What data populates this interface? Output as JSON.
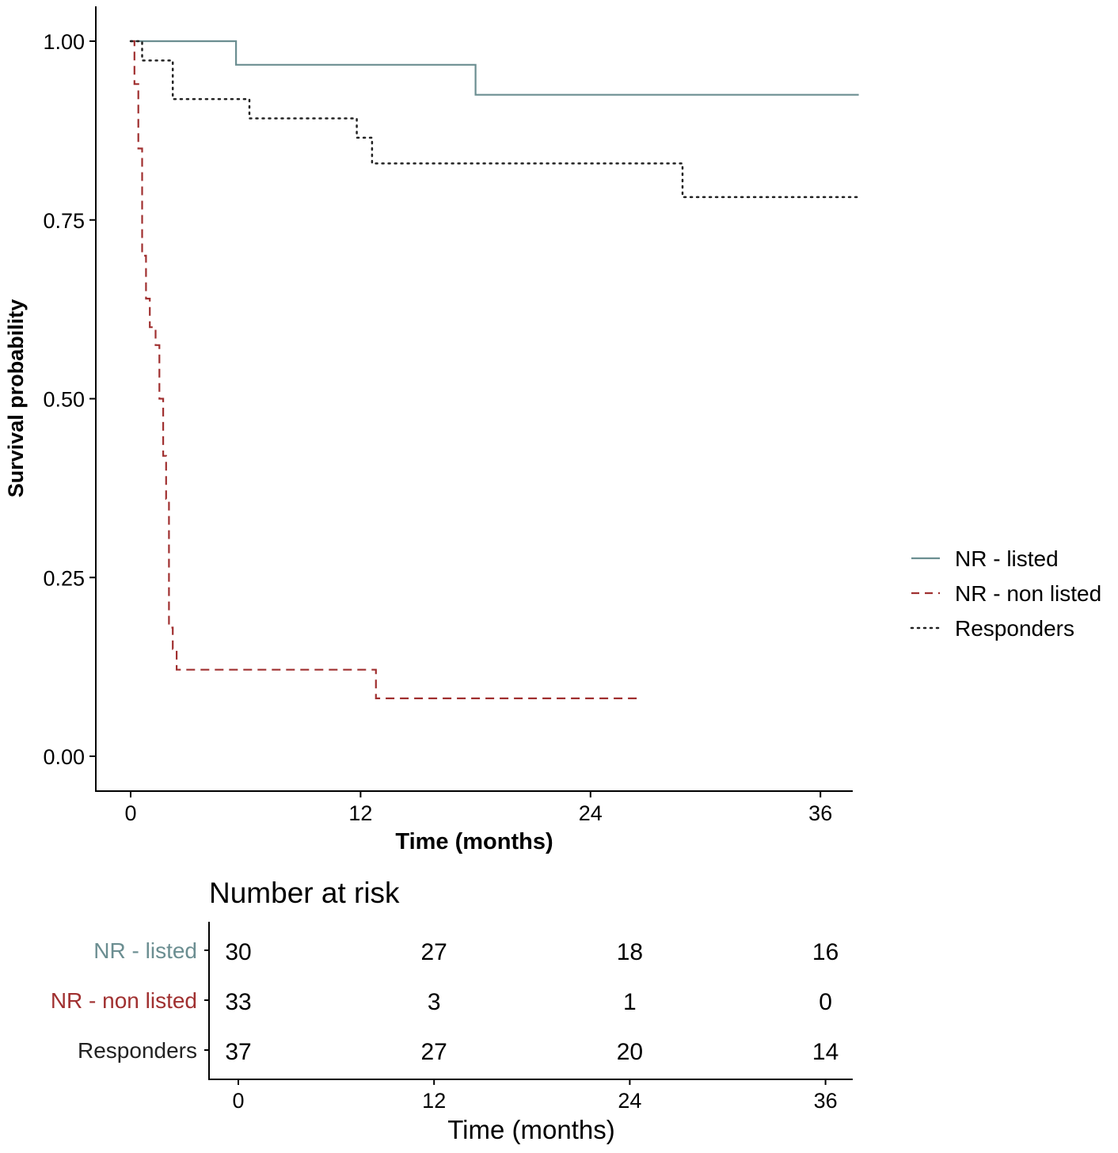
{
  "chart_data": [
    {
      "type": "line",
      "subtype": "kaplan-meier survival curve",
      "xlabel": "Time (months)",
      "ylabel": "Survival probability",
      "xlim": [
        -1.5,
        38
      ],
      "ylim": [
        -0.05,
        1.05
      ],
      "x_ticks": [
        "0",
        "12",
        "24",
        "36"
      ],
      "y_ticks": [
        "0.00",
        "0.25",
        "0.50",
        "0.75",
        "1.00"
      ],
      "grid": false,
      "legend_position": "right",
      "series": [
        {
          "name": "NR - listed",
          "color": "#6b8e91",
          "line_style": "solid",
          "points": [
            [
              0,
              1.0
            ],
            [
              5.5,
              1.0
            ],
            [
              5.5,
              0.967
            ],
            [
              18,
              0.967
            ],
            [
              18,
              0.925
            ],
            [
              38,
              0.925
            ]
          ]
        },
        {
          "name": "NR - non listed",
          "color": "#a03030",
          "line_style": "dashed",
          "points": [
            [
              0,
              1.0
            ],
            [
              0.2,
              1.0
            ],
            [
              0.2,
              0.94
            ],
            [
              0.4,
              0.94
            ],
            [
              0.4,
              0.85
            ],
            [
              0.6,
              0.85
            ],
            [
              0.6,
              0.7
            ],
            [
              0.8,
              0.7
            ],
            [
              0.8,
              0.64
            ],
            [
              1.0,
              0.64
            ],
            [
              1.0,
              0.6
            ],
            [
              1.3,
              0.6
            ],
            [
              1.3,
              0.575
            ],
            [
              1.5,
              0.575
            ],
            [
              1.5,
              0.5
            ],
            [
              1.7,
              0.5
            ],
            [
              1.7,
              0.42
            ],
            [
              1.85,
              0.42
            ],
            [
              1.85,
              0.36
            ],
            [
              2.0,
              0.36
            ],
            [
              2.0,
              0.18
            ],
            [
              2.2,
              0.18
            ],
            [
              2.2,
              0.15
            ],
            [
              2.4,
              0.15
            ],
            [
              2.4,
              0.121
            ],
            [
              12.8,
              0.121
            ],
            [
              12.8,
              0.081
            ],
            [
              26.5,
              0.081
            ]
          ]
        },
        {
          "name": "Responders",
          "color": "#222222",
          "line_style": "dotted",
          "points": [
            [
              0,
              1.0
            ],
            [
              0.6,
              1.0
            ],
            [
              0.6,
              0.973
            ],
            [
              2.2,
              0.973
            ],
            [
              2.2,
              0.919
            ],
            [
              6.2,
              0.919
            ],
            [
              6.2,
              0.892
            ],
            [
              11.8,
              0.892
            ],
            [
              11.8,
              0.865
            ],
            [
              12.6,
              0.865
            ],
            [
              12.6,
              0.829
            ],
            [
              28.8,
              0.829
            ],
            [
              28.8,
              0.782
            ],
            [
              38,
              0.782
            ]
          ]
        }
      ]
    },
    {
      "type": "table",
      "title": "Number at risk",
      "xlabel": "Time (months)",
      "x_ticks": [
        "0",
        "12",
        "24",
        "36"
      ],
      "rows": [
        {
          "name": "NR - listed",
          "color": "#6b8e91",
          "values": [
            "30",
            "27",
            "18",
            "16"
          ]
        },
        {
          "name": "NR - non listed",
          "color": "#a03030",
          "values": [
            "33",
            "3",
            "1",
            "0"
          ]
        },
        {
          "name": "Responders",
          "color": "#222222",
          "values": [
            "37",
            "27",
            "20",
            "14"
          ]
        }
      ]
    }
  ]
}
